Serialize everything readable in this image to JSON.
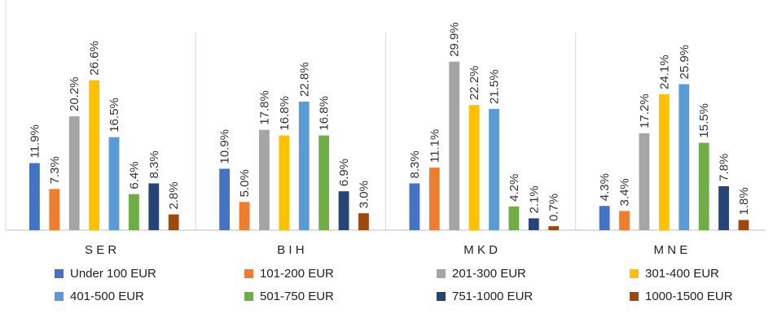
{
  "chart_data": {
    "type": "bar",
    "categories": [
      "S E R",
      "B I H",
      "M K D",
      "M N E"
    ],
    "series": [
      {
        "name": "Under 100 EUR",
        "color": "#4472C4",
        "values": [
          11.9,
          10.9,
          8.3,
          4.3
        ]
      },
      {
        "name": "101-200 EUR",
        "color": "#ED7D31",
        "values": [
          7.3,
          5.0,
          11.1,
          3.4
        ]
      },
      {
        "name": "201-300 EUR",
        "color": "#A5A5A5",
        "values": [
          20.2,
          17.8,
          29.9,
          17.2
        ]
      },
      {
        "name": "301-400 EUR",
        "color": "#FFC000",
        "values": [
          26.6,
          16.8,
          22.2,
          24.1
        ]
      },
      {
        "name": "401-500 EUR",
        "color": "#5B9BD5",
        "values": [
          16.5,
          22.8,
          21.5,
          25.9
        ]
      },
      {
        "name": "501-750 EUR",
        "color": "#70AD47",
        "values": [
          6.4,
          16.8,
          4.2,
          15.5
        ]
      },
      {
        "name": "751-1000 EUR",
        "color": "#264478",
        "values": [
          8.3,
          6.9,
          2.1,
          7.8
        ]
      },
      {
        "name": "1000-1500 EUR",
        "color": "#9E480E",
        "values": [
          2.8,
          3.0,
          0.7,
          1.8
        ]
      }
    ],
    "data_labels": [
      [
        "11.9%",
        "10.9%",
        "8.3%",
        "4.3%"
      ],
      [
        "7.3%",
        "5.0%",
        "11.1%",
        "3.4%"
      ],
      [
        "20.2%",
        "17.8%",
        "29.9%",
        "17.2%"
      ],
      [
        "26.6%",
        "16.8%",
        "22.2%",
        "24.1%"
      ],
      [
        "16.5%",
        "22.8%",
        "21.5%",
        "25.9%"
      ],
      [
        "6.4%",
        "16.8%",
        "4.2%",
        "15.5%"
      ],
      [
        "8.3%",
        "6.9%",
        "2.1%",
        "7.8%"
      ],
      [
        "2.8%",
        "3.0%",
        "0.7%",
        "1.8%"
      ]
    ],
    "ylim": [
      0,
      30
    ],
    "grid": "vertical separators between categories",
    "legend_position": "bottom"
  }
}
